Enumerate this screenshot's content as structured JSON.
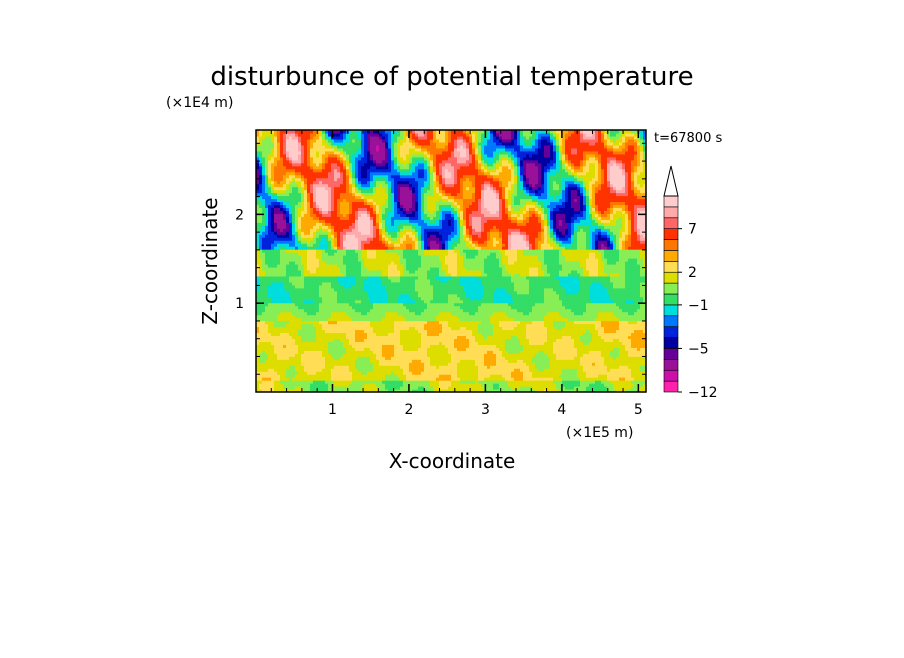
{
  "chart_data": {
    "type": "heatmap",
    "title": "disturbunce of potential temperature",
    "xlabel": "X-coordinate",
    "ylabel": "Z-coordinate",
    "x_unit": "(×1E5 m)",
    "y_unit": "(×1E4 m)",
    "time_label": "t=67800 s",
    "xlim": [
      0,
      5.1
    ],
    "ylim": [
      0,
      2.95
    ],
    "x_ticks": [
      1,
      2,
      3,
      4,
      5
    ],
    "y_ticks": [
      1,
      2
    ],
    "x_tick_labels": [
      "1",
      "2",
      "3",
      "4",
      "5"
    ],
    "y_tick_labels": [
      "1",
      "2"
    ],
    "x_minor_step": 0.2,
    "y_minor_step": 0.2,
    "colorbar": {
      "levels": [
        -12,
        -10,
        -8,
        -6,
        -5,
        -4,
        -3,
        -2,
        -1,
        0,
        1,
        2,
        3,
        4,
        5,
        7,
        8,
        9,
        12
      ],
      "colors": [
        "#ff22aa",
        "#cc11aa",
        "#991199",
        "#660099",
        "#0000a0",
        "#0022dd",
        "#0077ff",
        "#00dddd",
        "#33dd66",
        "#88ee55",
        "#dddd00",
        "#ffdd55",
        "#ffaa00",
        "#ff7700",
        "#ff3300",
        "#ff6666",
        "#ffaaaa",
        "#ffcccc"
      ],
      "extend_top": true,
      "labels": [
        {
          "value": 7,
          "text": "7"
        },
        {
          "value": 2,
          "text": "2"
        },
        {
          "value": -1,
          "text": "−1"
        },
        {
          "value": -5,
          "text": "−5"
        },
        {
          "value": -12,
          "text": "−12"
        }
      ]
    },
    "field_description_bands": [
      {
        "z_range": [
          0,
          0.3
        ],
        "dominant_values": [
          1,
          2
        ]
      },
      {
        "z_range": [
          0.3,
          0.8
        ],
        "dominant_values": [
          2,
          1,
          3
        ]
      },
      {
        "z_range": [
          0.8,
          1.0
        ],
        "dominant_values": [
          0,
          1
        ]
      },
      {
        "z_range": [
          1.0,
          1.3
        ],
        "dominant_values": [
          -1,
          0
        ]
      },
      {
        "z_range": [
          1.3,
          1.6
        ],
        "dominant_values": [
          0,
          1,
          2
        ]
      },
      {
        "z_range": [
          1.6,
          2.95
        ],
        "dominant_values": [
          5,
          3,
          -3,
          -5,
          -6,
          7
        ]
      }
    ]
  }
}
